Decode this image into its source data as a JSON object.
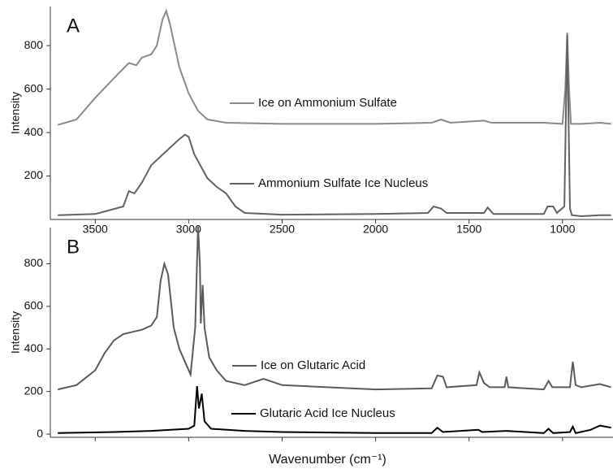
{
  "chart_data": [
    {
      "type": "line",
      "panel_label": "A",
      "y_label": "Intensity",
      "xlim": [
        3740,
        730
      ],
      "xticks": [
        3500,
        3000,
        2500,
        2000,
        1500,
        1000
      ],
      "ylim": [
        0,
        980
      ],
      "yticks": [
        200,
        400,
        600,
        800
      ],
      "series": [
        {
          "name": "Ice on Ammonium Sulfate",
          "color": "#8a8a8a",
          "x": [
            3700,
            3600,
            3500,
            3400,
            3320,
            3280,
            3250,
            3200,
            3170,
            3140,
            3120,
            3100,
            3050,
            3000,
            2950,
            2900,
            2800,
            2500,
            2000,
            1700,
            1650,
            1600,
            1420,
            1380,
            1100,
            1000,
            985,
            975,
            965,
            955,
            900,
            800,
            740
          ],
          "values": [
            435,
            460,
            560,
            650,
            720,
            710,
            745,
            760,
            800,
            920,
            960,
            900,
            700,
            580,
            500,
            460,
            445,
            440,
            440,
            445,
            460,
            445,
            455,
            445,
            445,
            440,
            600,
            860,
            600,
            440,
            440,
            445,
            440
          ]
        },
        {
          "name": "Ammonium Sulfate Ice Nucleus",
          "color": "#626262",
          "x": [
            3700,
            3500,
            3350,
            3320,
            3290,
            3250,
            3200,
            3150,
            3100,
            3050,
            3020,
            3000,
            2970,
            2900,
            2850,
            2800,
            2750,
            2700,
            2500,
            2000,
            1720,
            1690,
            1650,
            1620,
            1420,
            1400,
            1370,
            1100,
            1080,
            1050,
            1030,
            990,
            975,
            960,
            950,
            900,
            800,
            740
          ],
          "values": [
            20,
            25,
            60,
            130,
            120,
            170,
            250,
            290,
            330,
            370,
            390,
            380,
            300,
            190,
            150,
            120,
            60,
            30,
            22,
            25,
            30,
            60,
            50,
            30,
            30,
            55,
            25,
            25,
            60,
            60,
            30,
            60,
            850,
            50,
            20,
            15,
            20,
            20
          ]
        }
      ]
    },
    {
      "type": "line",
      "panel_label": "B",
      "y_label": "Intensity",
      "x_label": "Wavenumber (cm⁻¹)",
      "xlim": [
        3740,
        730
      ],
      "xticks": [
        3500,
        3000,
        2500,
        2000,
        1500,
        1000
      ],
      "ylim": [
        -15,
        970
      ],
      "yticks": [
        0,
        200,
        400,
        600,
        800
      ],
      "series": [
        {
          "name": "Ice on Glutaric Acid",
          "color": "#5a5a5a",
          "x": [
            3700,
            3600,
            3500,
            3450,
            3400,
            3350,
            3300,
            3250,
            3200,
            3170,
            3150,
            3130,
            3110,
            3080,
            3050,
            3010,
            2990,
            2965,
            2950,
            2940,
            2935,
            2925,
            2915,
            2890,
            2850,
            2800,
            2700,
            2600,
            2500,
            2000,
            1700,
            1670,
            1640,
            1620,
            1460,
            1445,
            1420,
            1390,
            1310,
            1300,
            1290,
            1100,
            1075,
            1055,
            960,
            945,
            930,
            900,
            800,
            740
          ],
          "values": [
            210,
            230,
            300,
            380,
            440,
            470,
            480,
            490,
            510,
            550,
            720,
            800,
            750,
            500,
            400,
            320,
            280,
            500,
            975,
            800,
            520,
            700,
            500,
            360,
            300,
            250,
            230,
            260,
            230,
            210,
            215,
            275,
            270,
            220,
            230,
            290,
            240,
            220,
            220,
            270,
            220,
            210,
            250,
            220,
            220,
            340,
            230,
            220,
            235,
            220
          ]
        },
        {
          "name": "Glutaric Acid Ice Nucleus",
          "color": "#000000",
          "x": [
            3700,
            3400,
            3200,
            3000,
            2970,
            2955,
            2945,
            2930,
            2915,
            2880,
            2700,
            2500,
            2000,
            1700,
            1670,
            1640,
            1450,
            1430,
            1300,
            1100,
            1075,
            1050,
            960,
            945,
            930,
            850,
            800,
            740
          ],
          "values": [
            5,
            10,
            15,
            25,
            40,
            225,
            120,
            190,
            60,
            25,
            15,
            10,
            5,
            5,
            30,
            10,
            20,
            10,
            15,
            5,
            25,
            5,
            10,
            35,
            5,
            20,
            40,
            30
          ]
        }
      ]
    }
  ]
}
